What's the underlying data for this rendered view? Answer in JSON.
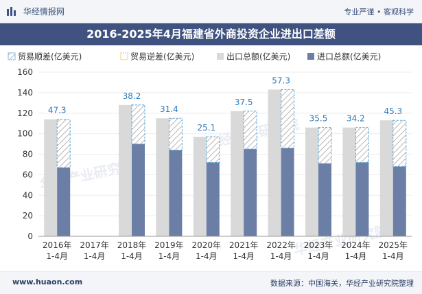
{
  "header": {
    "brand": "华经情报网",
    "tag_right": "专业严谨 • 客观科学"
  },
  "title": "2016-2025年4月福建省外商投资企业进出口差额",
  "footer": {
    "website": "www.huaon.com",
    "source": "数据来源：中国海关，华经产业研究院整理"
  },
  "watermark": "华经产业研究院",
  "colors": {
    "export": "#d9d9d9",
    "import": "#6b7ea6",
    "surplus_stroke": "#5aa5d6",
    "deficit_stroke": "#f2c14e",
    "label": "#2f7ab8",
    "title_bg": "#3f5280"
  },
  "chart_data": {
    "type": "bar",
    "categories": [
      "2016年\n1-4月",
      "2017年\n1-4月",
      "2018年\n1-4月",
      "2019年\n1-4月",
      "2020年\n1-4月",
      "2021年\n1-4月",
      "2022年\n1-4月",
      "2023年\n1-4月",
      "2024年\n1-4月",
      "2025年\n1-4月"
    ],
    "series": [
      {
        "name": "贸易顺差(亿美元)",
        "values": [
          47.3,
          null,
          38.2,
          31.4,
          25.1,
          37.5,
          57.3,
          35.5,
          34.2,
          45.3
        ]
      },
      {
        "name": "贸易逆差(亿美元)",
        "values": [
          null,
          null,
          null,
          null,
          null,
          null,
          null,
          null,
          null,
          null
        ]
      },
      {
        "name": "出口总额(亿美元)",
        "values": [
          114,
          null,
          128,
          115,
          97,
          122,
          143,
          106,
          106,
          113
        ]
      },
      {
        "name": "进口总额(亿美元)",
        "values": [
          67,
          null,
          90,
          84,
          72,
          85,
          86,
          71,
          72,
          68
        ]
      }
    ],
    "ylim": [
      0,
      160
    ],
    "yticks": [
      0,
      20,
      40,
      60,
      80,
      100,
      120,
      140,
      160
    ],
    "legend_position": "top"
  }
}
